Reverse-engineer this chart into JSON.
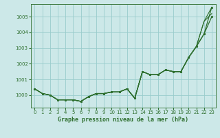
{
  "background_color": "#cce8e8",
  "grid_color": "#99cccc",
  "line_color": "#2d6e2d",
  "title": "Graphe pression niveau de la mer (hPa)",
  "xlim": [
    -0.5,
    23.5
  ],
  "ylim": [
    999.2,
    1005.8
  ],
  "xticks": [
    0,
    1,
    2,
    3,
    4,
    5,
    6,
    7,
    8,
    9,
    10,
    11,
    12,
    13,
    14,
    15,
    16,
    17,
    18,
    19,
    20,
    21,
    22,
    23
  ],
  "yticks": [
    1000,
    1001,
    1002,
    1003,
    1004,
    1005
  ],
  "series": [
    {
      "y": [
        1000.4,
        1000.1,
        1000.0,
        999.7,
        999.7,
        999.7,
        999.6,
        999.9,
        1000.1,
        1000.1,
        1000.2,
        1000.2,
        1000.4,
        999.8,
        1001.5,
        1001.3,
        1001.3,
        1001.6,
        1001.5,
        1001.5,
        1002.4,
        1003.1,
        1003.9,
        1005.6
      ],
      "marker": true,
      "linewidth": 0.9
    },
    {
      "y": [
        1000.4,
        1000.1,
        1000.0,
        999.7,
        999.7,
        999.7,
        999.6,
        999.9,
        1000.1,
        1000.1,
        1000.2,
        1000.2,
        1000.4,
        999.8,
        1001.5,
        1001.3,
        1001.3,
        1001.6,
        1001.5,
        1001.5,
        1002.4,
        1003.1,
        1003.9,
        1005.0
      ],
      "marker": true,
      "linewidth": 0.9
    },
    {
      "y": [
        1000.4,
        1000.1,
        1000.0,
        999.7,
        999.7,
        999.7,
        999.6,
        999.9,
        1000.1,
        1000.1,
        1000.2,
        1000.2,
        1000.4,
        999.8,
        1001.5,
        1001.3,
        1001.3,
        1001.6,
        1001.5,
        1001.5,
        1002.4,
        1003.1,
        1004.7,
        1005.6
      ],
      "marker": false,
      "linewidth": 0.8
    },
    {
      "y": [
        1000.4,
        1000.1,
        1000.0,
        999.7,
        999.7,
        999.7,
        999.6,
        999.9,
        1000.1,
        1000.1,
        1000.2,
        1000.2,
        1000.4,
        999.8,
        1001.5,
        1001.3,
        1001.3,
        1001.6,
        1001.5,
        1001.5,
        1002.4,
        1003.1,
        1004.7,
        1005.2
      ],
      "marker": false,
      "linewidth": 0.8
    }
  ]
}
